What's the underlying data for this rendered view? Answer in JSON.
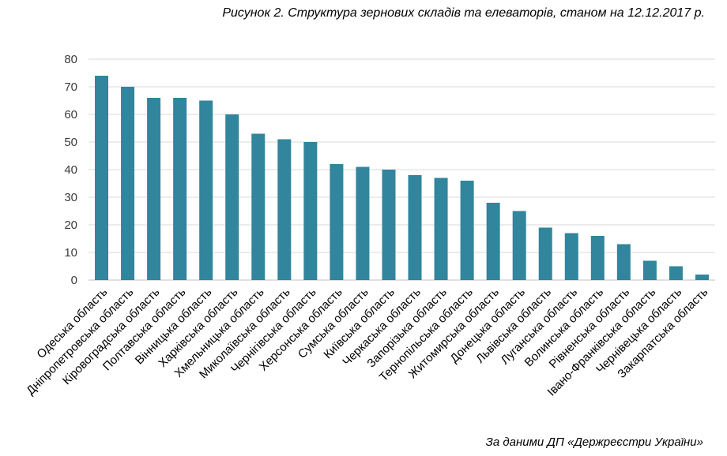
{
  "chart_data": {
    "type": "bar",
    "title": "Рисунок 2. Структура зернових складів та елеваторів, станом на 12.12.2017 р.",
    "source": "За даними  ДП «Держреєстри України»",
    "categories": [
      "Одеська область",
      "Дніпропетровська область",
      "Кіровоградська область",
      "Полтавська область",
      "Вінницька область",
      "Харківська область",
      "Хмельницька область",
      "Миколаївська область",
      "Чернігівська область",
      "Херсонська область",
      "Сумська область",
      "Київська область",
      "Черкаська область",
      "Запорізька область",
      "Тернопільська область",
      "Житомирська область",
      "Донецька область",
      "Львівська область",
      "Луганська область",
      "Волинська область",
      "Рівненська область",
      "Івано-Франківська область",
      "Чернівецька область",
      "Закарпатська область"
    ],
    "values": [
      74,
      70,
      66,
      66,
      65,
      60,
      53,
      51,
      50,
      42,
      41,
      40,
      38,
      37,
      36,
      28,
      25,
      19,
      17,
      16,
      13,
      7,
      5,
      2
    ],
    "ylim": [
      0,
      80
    ],
    "yticks": [
      0,
      10,
      20,
      30,
      40,
      50,
      60,
      70,
      80
    ],
    "grid": true,
    "colors": {
      "bar": "#31859c",
      "grid": "#d9d9d9",
      "axis": "#bfbfbf"
    }
  }
}
